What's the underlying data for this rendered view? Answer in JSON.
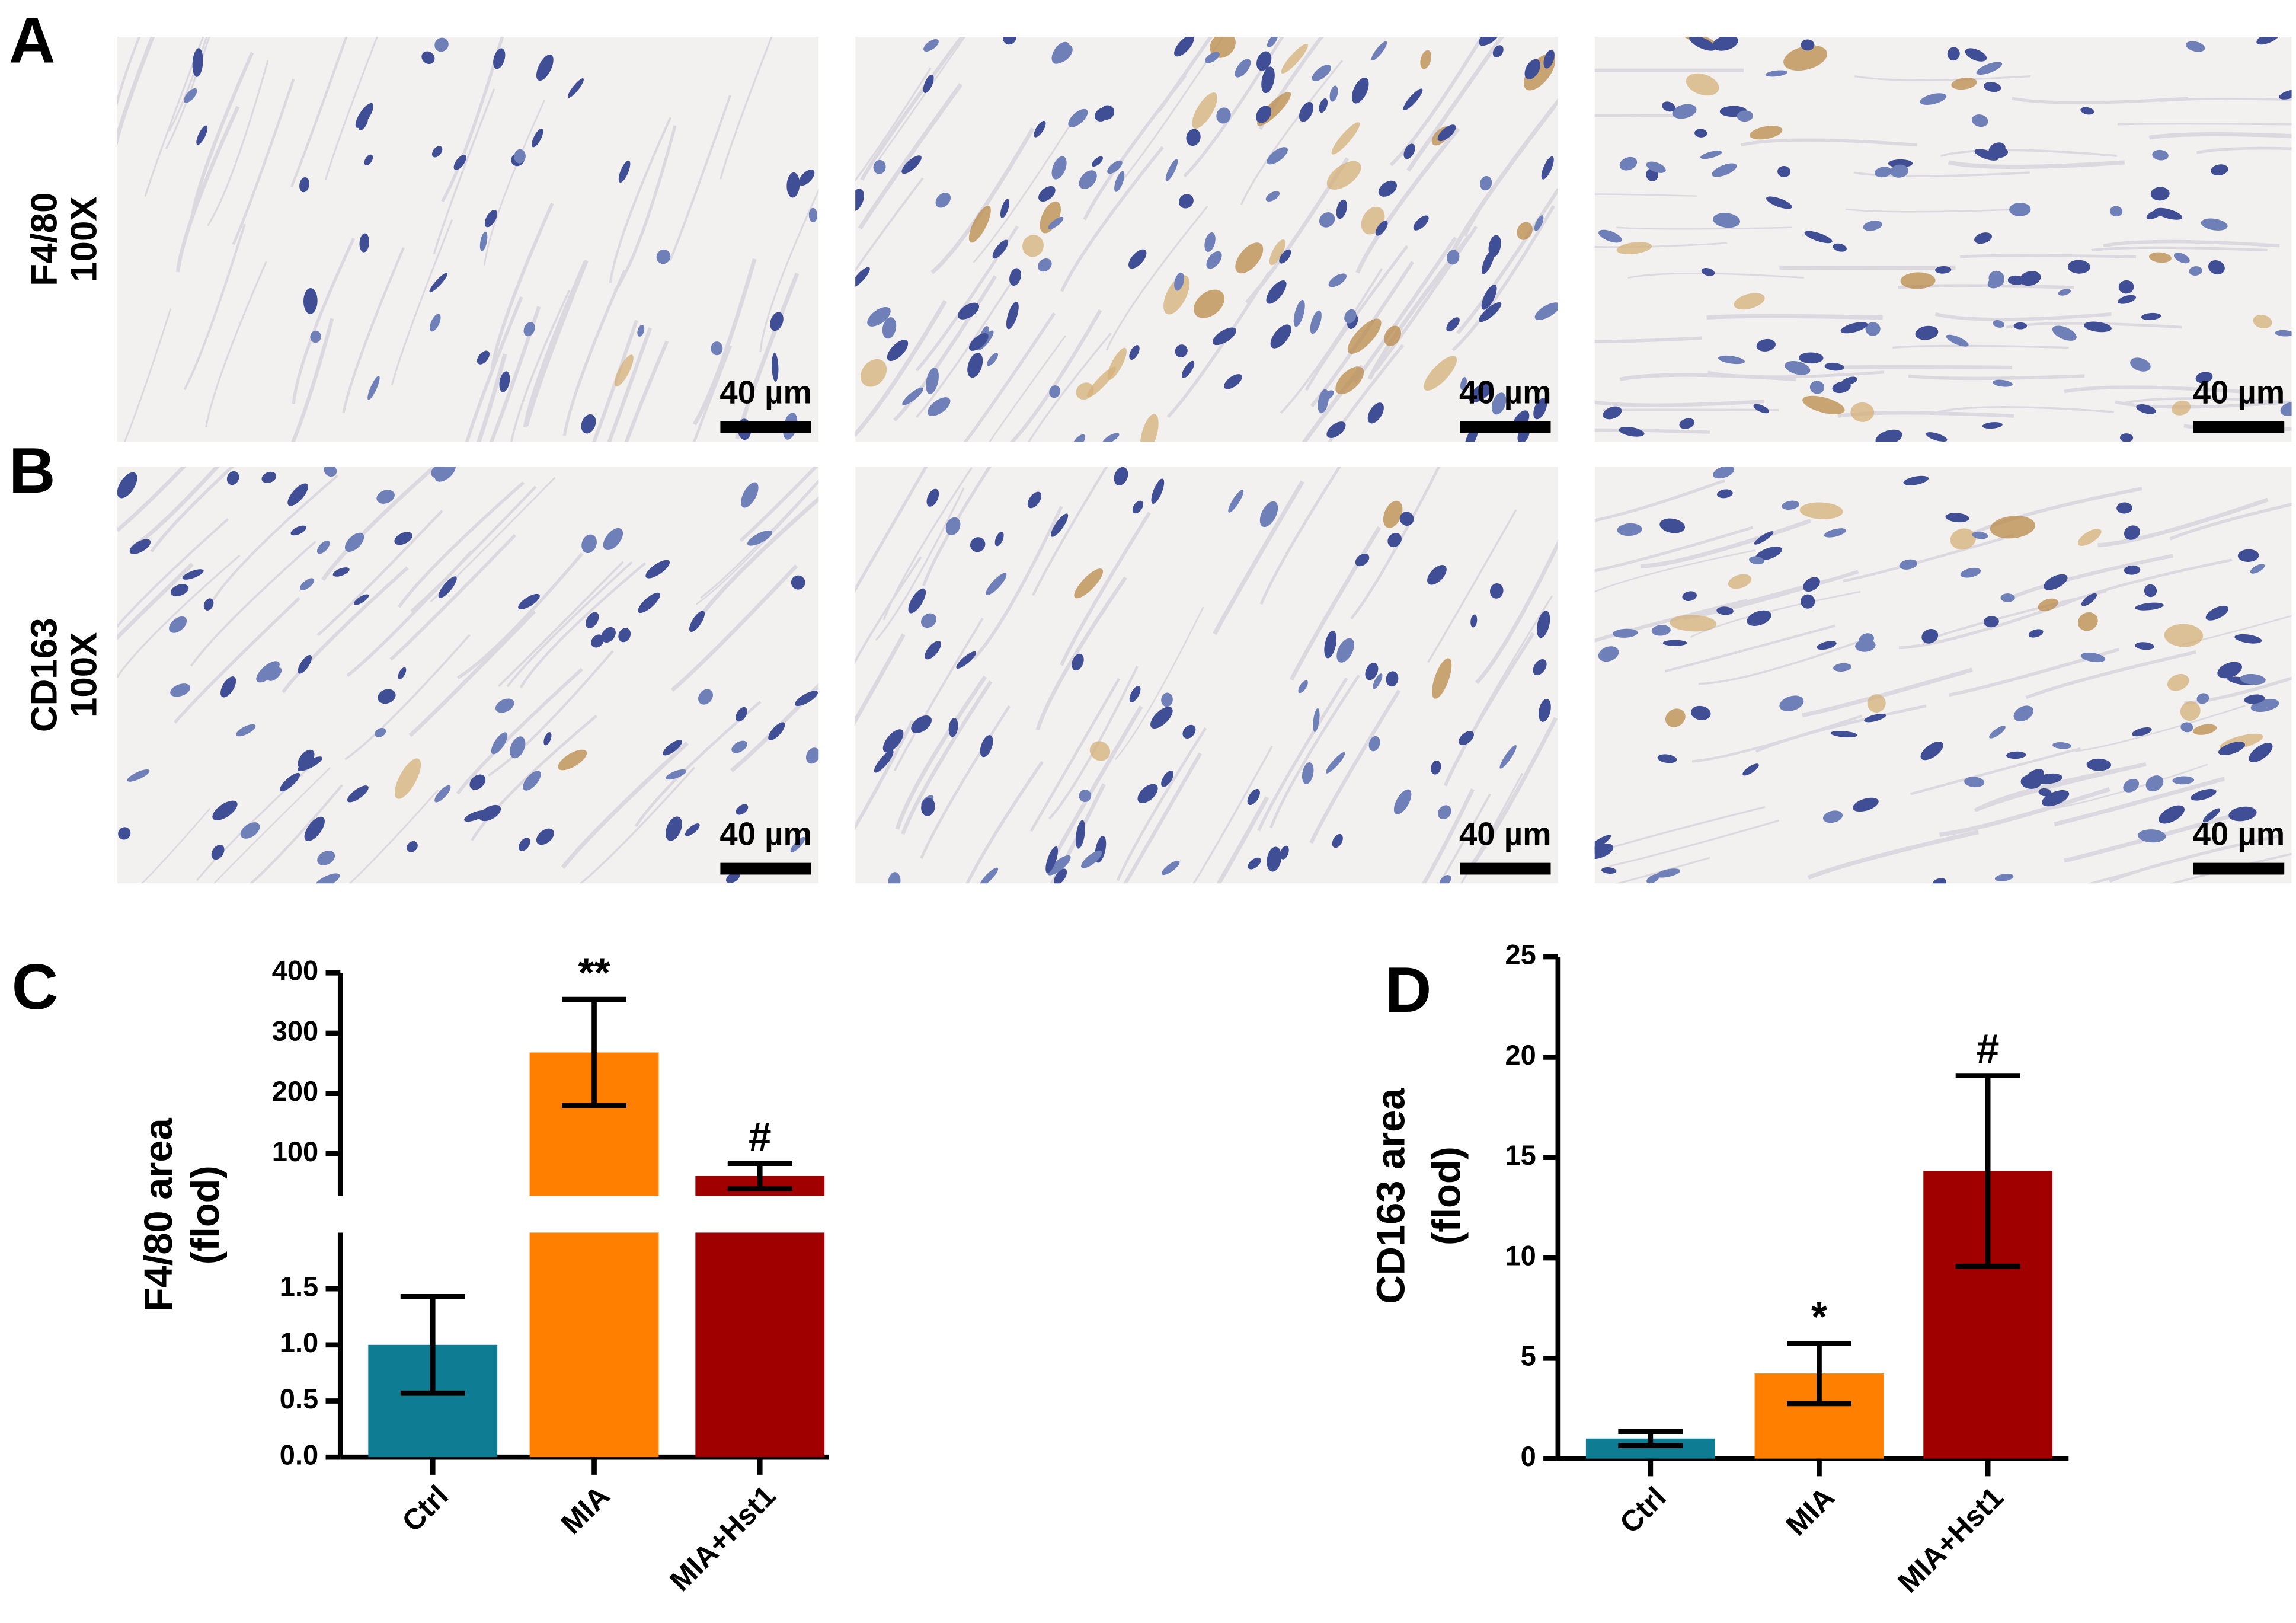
{
  "micrographs": {
    "rows": [
      {
        "label": "A",
        "stain": "F4/80",
        "magnification": "100X",
        "scale_bars": [
          "40 µm",
          "40 µm",
          "40 µm"
        ]
      },
      {
        "label": "B",
        "stain": "CD163",
        "magnification": "100X",
        "scale_bars": [
          "40 µm",
          "40 µm",
          "40 µm"
        ]
      }
    ]
  },
  "chart_data": [
    {
      "type": "bar",
      "panel_label": "C",
      "y_label": [
        "F4/80 area",
        "(flod)"
      ],
      "categories": [
        "Ctrl",
        "MIA",
        "MIA+Hst1"
      ],
      "values": [
        1.0,
        268,
        63
      ],
      "errors": [
        0.43,
        88,
        21
      ],
      "annotations": [
        null,
        "**",
        "#"
      ],
      "colors": [
        "#0e7c93",
        "#ff8000",
        "#a00000"
      ],
      "axis_break": true,
      "ylim": [
        0,
        2
      ],
      "yticks": [
        {
          "value": 0,
          "label": "0.0"
        },
        0.5,
        {
          "value": 1,
          "label": "1.0"
        },
        1.5
      ],
      "ylim_upper": [
        30,
        400
      ],
      "yticks_upper": [
        100,
        200,
        300,
        400
      ],
      "grid": false
    },
    {
      "type": "bar",
      "panel_label": "D",
      "y_label": [
        "CD163 area",
        "(flod)"
      ],
      "categories": [
        "Ctrl",
        "MIA",
        "MIA+Hst1"
      ],
      "values": [
        1.0,
        4.24,
        14.33
      ],
      "errors": [
        0.35,
        1.5,
        4.75
      ],
      "annotations": [
        null,
        "*",
        "#"
      ],
      "colors": [
        "#0e7c93",
        "#ff8000",
        "#a00000"
      ],
      "ylim": [
        0,
        25
      ],
      "yticks": [
        0,
        5,
        10,
        15,
        20,
        25
      ],
      "grid": false
    }
  ]
}
